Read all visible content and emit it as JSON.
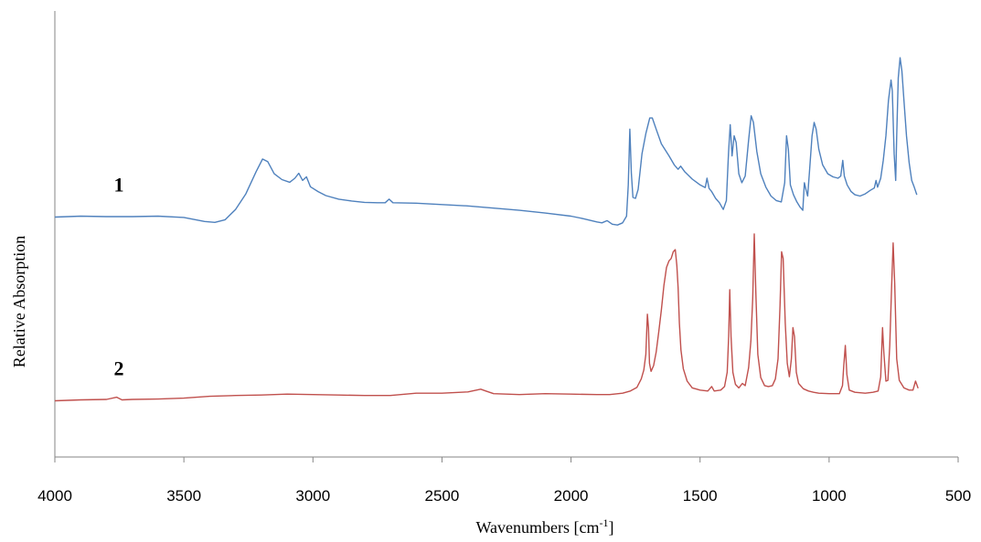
{
  "chart_data": {
    "type": "line",
    "title": "",
    "xlabel": "Wavenumbers [cm",
    "xlabel_sup": "-1",
    "xlabel_suffix": "]",
    "ylabel": "Relative Absorption",
    "x_reversed": true,
    "xlim": [
      4000,
      500
    ],
    "ylim": [
      0,
      100
    ],
    "xticks": [
      4000,
      3500,
      3000,
      2500,
      2000,
      1500,
      1000,
      500
    ],
    "grid": false,
    "series": [
      {
        "name": "1",
        "color": "#4f81bd",
        "points": [
          [
            4000,
            53.8
          ],
          [
            3900,
            54.0
          ],
          [
            3800,
            53.9
          ],
          [
            3700,
            53.9
          ],
          [
            3600,
            54.0
          ],
          [
            3500,
            53.7
          ],
          [
            3420,
            52.8
          ],
          [
            3380,
            52.6
          ],
          [
            3340,
            53.2
          ],
          [
            3300,
            55.5
          ],
          [
            3260,
            59.0
          ],
          [
            3220,
            64.0
          ],
          [
            3195,
            66.8
          ],
          [
            3175,
            66.2
          ],
          [
            3150,
            63.5
          ],
          [
            3120,
            62.2
          ],
          [
            3090,
            61.6
          ],
          [
            3070,
            62.5
          ],
          [
            3055,
            63.6
          ],
          [
            3040,
            62.0
          ],
          [
            3025,
            62.8
          ],
          [
            3010,
            60.6
          ],
          [
            2980,
            59.5
          ],
          [
            2950,
            58.6
          ],
          [
            2900,
            57.8
          ],
          [
            2850,
            57.4
          ],
          [
            2800,
            57.1
          ],
          [
            2750,
            57.0
          ],
          [
            2720,
            57.0
          ],
          [
            2705,
            57.8
          ],
          [
            2690,
            57.0
          ],
          [
            2600,
            56.9
          ],
          [
            2500,
            56.6
          ],
          [
            2400,
            56.3
          ],
          [
            2300,
            55.8
          ],
          [
            2200,
            55.3
          ],
          [
            2100,
            54.7
          ],
          [
            2000,
            54.0
          ],
          [
            1950,
            53.4
          ],
          [
            1900,
            52.7
          ],
          [
            1880,
            52.5
          ],
          [
            1860,
            53.0
          ],
          [
            1840,
            52.2
          ],
          [
            1820,
            52.0
          ],
          [
            1800,
            52.5
          ],
          [
            1785,
            54.0
          ],
          [
            1778,
            61.0
          ],
          [
            1772,
            73.5
          ],
          [
            1766,
            63.5
          ],
          [
            1760,
            58.2
          ],
          [
            1750,
            58.0
          ],
          [
            1740,
            60.0
          ],
          [
            1725,
            68.0
          ],
          [
            1710,
            72.5
          ],
          [
            1695,
            76.0
          ],
          [
            1685,
            76.0
          ],
          [
            1670,
            73.5
          ],
          [
            1650,
            70.2
          ],
          [
            1620,
            67.5
          ],
          [
            1600,
            65.5
          ],
          [
            1585,
            64.5
          ],
          [
            1575,
            65.2
          ],
          [
            1560,
            64.0
          ],
          [
            1530,
            62.3
          ],
          [
            1500,
            61.0
          ],
          [
            1480,
            60.4
          ],
          [
            1473,
            62.5
          ],
          [
            1465,
            60.2
          ],
          [
            1455,
            59.5
          ],
          [
            1440,
            58.0
          ],
          [
            1425,
            57.0
          ],
          [
            1410,
            55.5
          ],
          [
            1398,
            57.5
          ],
          [
            1390,
            68.0
          ],
          [
            1383,
            74.5
          ],
          [
            1376,
            67.5
          ],
          [
            1368,
            72.0
          ],
          [
            1360,
            70.5
          ],
          [
            1350,
            63.5
          ],
          [
            1338,
            61.5
          ],
          [
            1325,
            63.0
          ],
          [
            1312,
            71.0
          ],
          [
            1302,
            76.5
          ],
          [
            1293,
            75.0
          ],
          [
            1280,
            68.5
          ],
          [
            1265,
            63.5
          ],
          [
            1245,
            60.5
          ],
          [
            1225,
            58.5
          ],
          [
            1205,
            57.5
          ],
          [
            1185,
            57.2
          ],
          [
            1172,
            61.5
          ],
          [
            1165,
            72.0
          ],
          [
            1158,
            69.0
          ],
          [
            1150,
            61.0
          ],
          [
            1138,
            58.8
          ],
          [
            1125,
            57.2
          ],
          [
            1112,
            56.0
          ],
          [
            1102,
            55.3
          ],
          [
            1096,
            61.5
          ],
          [
            1090,
            60.0
          ],
          [
            1083,
            58.5
          ],
          [
            1076,
            64.0
          ],
          [
            1066,
            72.0
          ],
          [
            1058,
            75.0
          ],
          [
            1050,
            73.5
          ],
          [
            1040,
            69.0
          ],
          [
            1025,
            65.5
          ],
          [
            1005,
            63.5
          ],
          [
            985,
            62.8
          ],
          [
            965,
            62.5
          ],
          [
            955,
            63.0
          ],
          [
            947,
            66.5
          ],
          [
            941,
            63.0
          ],
          [
            930,
            61.0
          ],
          [
            915,
            59.5
          ],
          [
            900,
            58.8
          ],
          [
            880,
            58.5
          ],
          [
            860,
            59.0
          ],
          [
            840,
            59.8
          ],
          [
            825,
            60.3
          ],
          [
            818,
            62.0
          ],
          [
            812,
            60.5
          ],
          [
            800,
            62.5
          ],
          [
            790,
            66.5
          ],
          [
            780,
            72.0
          ],
          [
            770,
            80.0
          ],
          [
            760,
            84.5
          ],
          [
            755,
            82.0
          ],
          [
            748,
            68.0
          ],
          [
            742,
            62.0
          ],
          [
            738,
            72.0
          ],
          [
            732,
            85.0
          ],
          [
            725,
            89.5
          ],
          [
            718,
            86.5
          ],
          [
            710,
            80.0
          ],
          [
            700,
            72.0
          ],
          [
            690,
            66.0
          ],
          [
            680,
            62.0
          ],
          [
            670,
            60.5
          ],
          [
            660,
            58.8
          ]
        ]
      },
      {
        "name": "2",
        "color": "#c0504d",
        "points": [
          [
            4000,
            12.6
          ],
          [
            3900,
            12.8
          ],
          [
            3800,
            12.9
          ],
          [
            3760,
            13.4
          ],
          [
            3740,
            12.8
          ],
          [
            3700,
            12.9
          ],
          [
            3600,
            13.0
          ],
          [
            3500,
            13.2
          ],
          [
            3400,
            13.6
          ],
          [
            3300,
            13.8
          ],
          [
            3200,
            13.9
          ],
          [
            3100,
            14.1
          ],
          [
            3000,
            14.0
          ],
          [
            2900,
            13.9
          ],
          [
            2800,
            13.8
          ],
          [
            2700,
            13.8
          ],
          [
            2600,
            14.3
          ],
          [
            2500,
            14.3
          ],
          [
            2400,
            14.6
          ],
          [
            2350,
            15.2
          ],
          [
            2330,
            14.8
          ],
          [
            2300,
            14.2
          ],
          [
            2250,
            14.1
          ],
          [
            2200,
            14.0
          ],
          [
            2100,
            14.2
          ],
          [
            2000,
            14.1
          ],
          [
            1900,
            14.0
          ],
          [
            1850,
            14.0
          ],
          [
            1800,
            14.3
          ],
          [
            1770,
            14.8
          ],
          [
            1745,
            15.6
          ],
          [
            1728,
            17.5
          ],
          [
            1718,
            19.5
          ],
          [
            1710,
            23.0
          ],
          [
            1704,
            32.0
          ],
          [
            1700,
            29.0
          ],
          [
            1696,
            21.0
          ],
          [
            1690,
            19.2
          ],
          [
            1680,
            20.5
          ],
          [
            1670,
            23.5
          ],
          [
            1660,
            28.0
          ],
          [
            1650,
            33.0
          ],
          [
            1640,
            38.5
          ],
          [
            1630,
            42.5
          ],
          [
            1620,
            44.0
          ],
          [
            1612,
            44.5
          ],
          [
            1604,
            46.0
          ],
          [
            1596,
            46.5
          ],
          [
            1590,
            43.0
          ],
          [
            1585,
            38.0
          ],
          [
            1580,
            30.0
          ],
          [
            1574,
            24.0
          ],
          [
            1565,
            19.8
          ],
          [
            1550,
            17.0
          ],
          [
            1530,
            15.5
          ],
          [
            1500,
            15.0
          ],
          [
            1470,
            14.8
          ],
          [
            1455,
            15.8
          ],
          [
            1445,
            14.8
          ],
          [
            1420,
            15.0
          ],
          [
            1405,
            15.8
          ],
          [
            1395,
            19.0
          ],
          [
            1389,
            27.0
          ],
          [
            1385,
            37.5
          ],
          [
            1380,
            27.0
          ],
          [
            1373,
            19.0
          ],
          [
            1363,
            16.3
          ],
          [
            1350,
            15.5
          ],
          [
            1336,
            16.5
          ],
          [
            1325,
            16.0
          ],
          [
            1312,
            20.0
          ],
          [
            1303,
            26.0
          ],
          [
            1296,
            35.5
          ],
          [
            1290,
            50.0
          ],
          [
            1284,
            37.0
          ],
          [
            1276,
            23.0
          ],
          [
            1265,
            17.8
          ],
          [
            1250,
            16.0
          ],
          [
            1235,
            15.8
          ],
          [
            1220,
            16.0
          ],
          [
            1208,
            17.5
          ],
          [
            1198,
            22.0
          ],
          [
            1190,
            34.0
          ],
          [
            1184,
            46.0
          ],
          [
            1178,
            44.5
          ],
          [
            1170,
            30.0
          ],
          [
            1162,
            21.0
          ],
          [
            1154,
            18.0
          ],
          [
            1146,
            22.0
          ],
          [
            1140,
            29.0
          ],
          [
            1134,
            27.0
          ],
          [
            1127,
            19.0
          ],
          [
            1118,
            16.5
          ],
          [
            1100,
            15.3
          ],
          [
            1080,
            14.8
          ],
          [
            1060,
            14.5
          ],
          [
            1040,
            14.3
          ],
          [
            1000,
            14.2
          ],
          [
            960,
            14.2
          ],
          [
            948,
            16.0
          ],
          [
            943,
            20.5
          ],
          [
            937,
            25.0
          ],
          [
            931,
            18.5
          ],
          [
            922,
            15.0
          ],
          [
            900,
            14.5
          ],
          [
            860,
            14.3
          ],
          [
            830,
            14.5
          ],
          [
            810,
            14.8
          ],
          [
            800,
            18.0
          ],
          [
            793,
            29.0
          ],
          [
            788,
            23.5
          ],
          [
            780,
            17.0
          ],
          [
            772,
            17.2
          ],
          [
            765,
            25.0
          ],
          [
            758,
            38.0
          ],
          [
            752,
            48.0
          ],
          [
            746,
            39.0
          ],
          [
            738,
            22.0
          ],
          [
            728,
            17.2
          ],
          [
            710,
            15.5
          ],
          [
            690,
            15.0
          ],
          [
            675,
            15.0
          ],
          [
            665,
            17.0
          ],
          [
            660,
            16.2
          ],
          [
            655,
            15.4
          ]
        ]
      }
    ]
  }
}
